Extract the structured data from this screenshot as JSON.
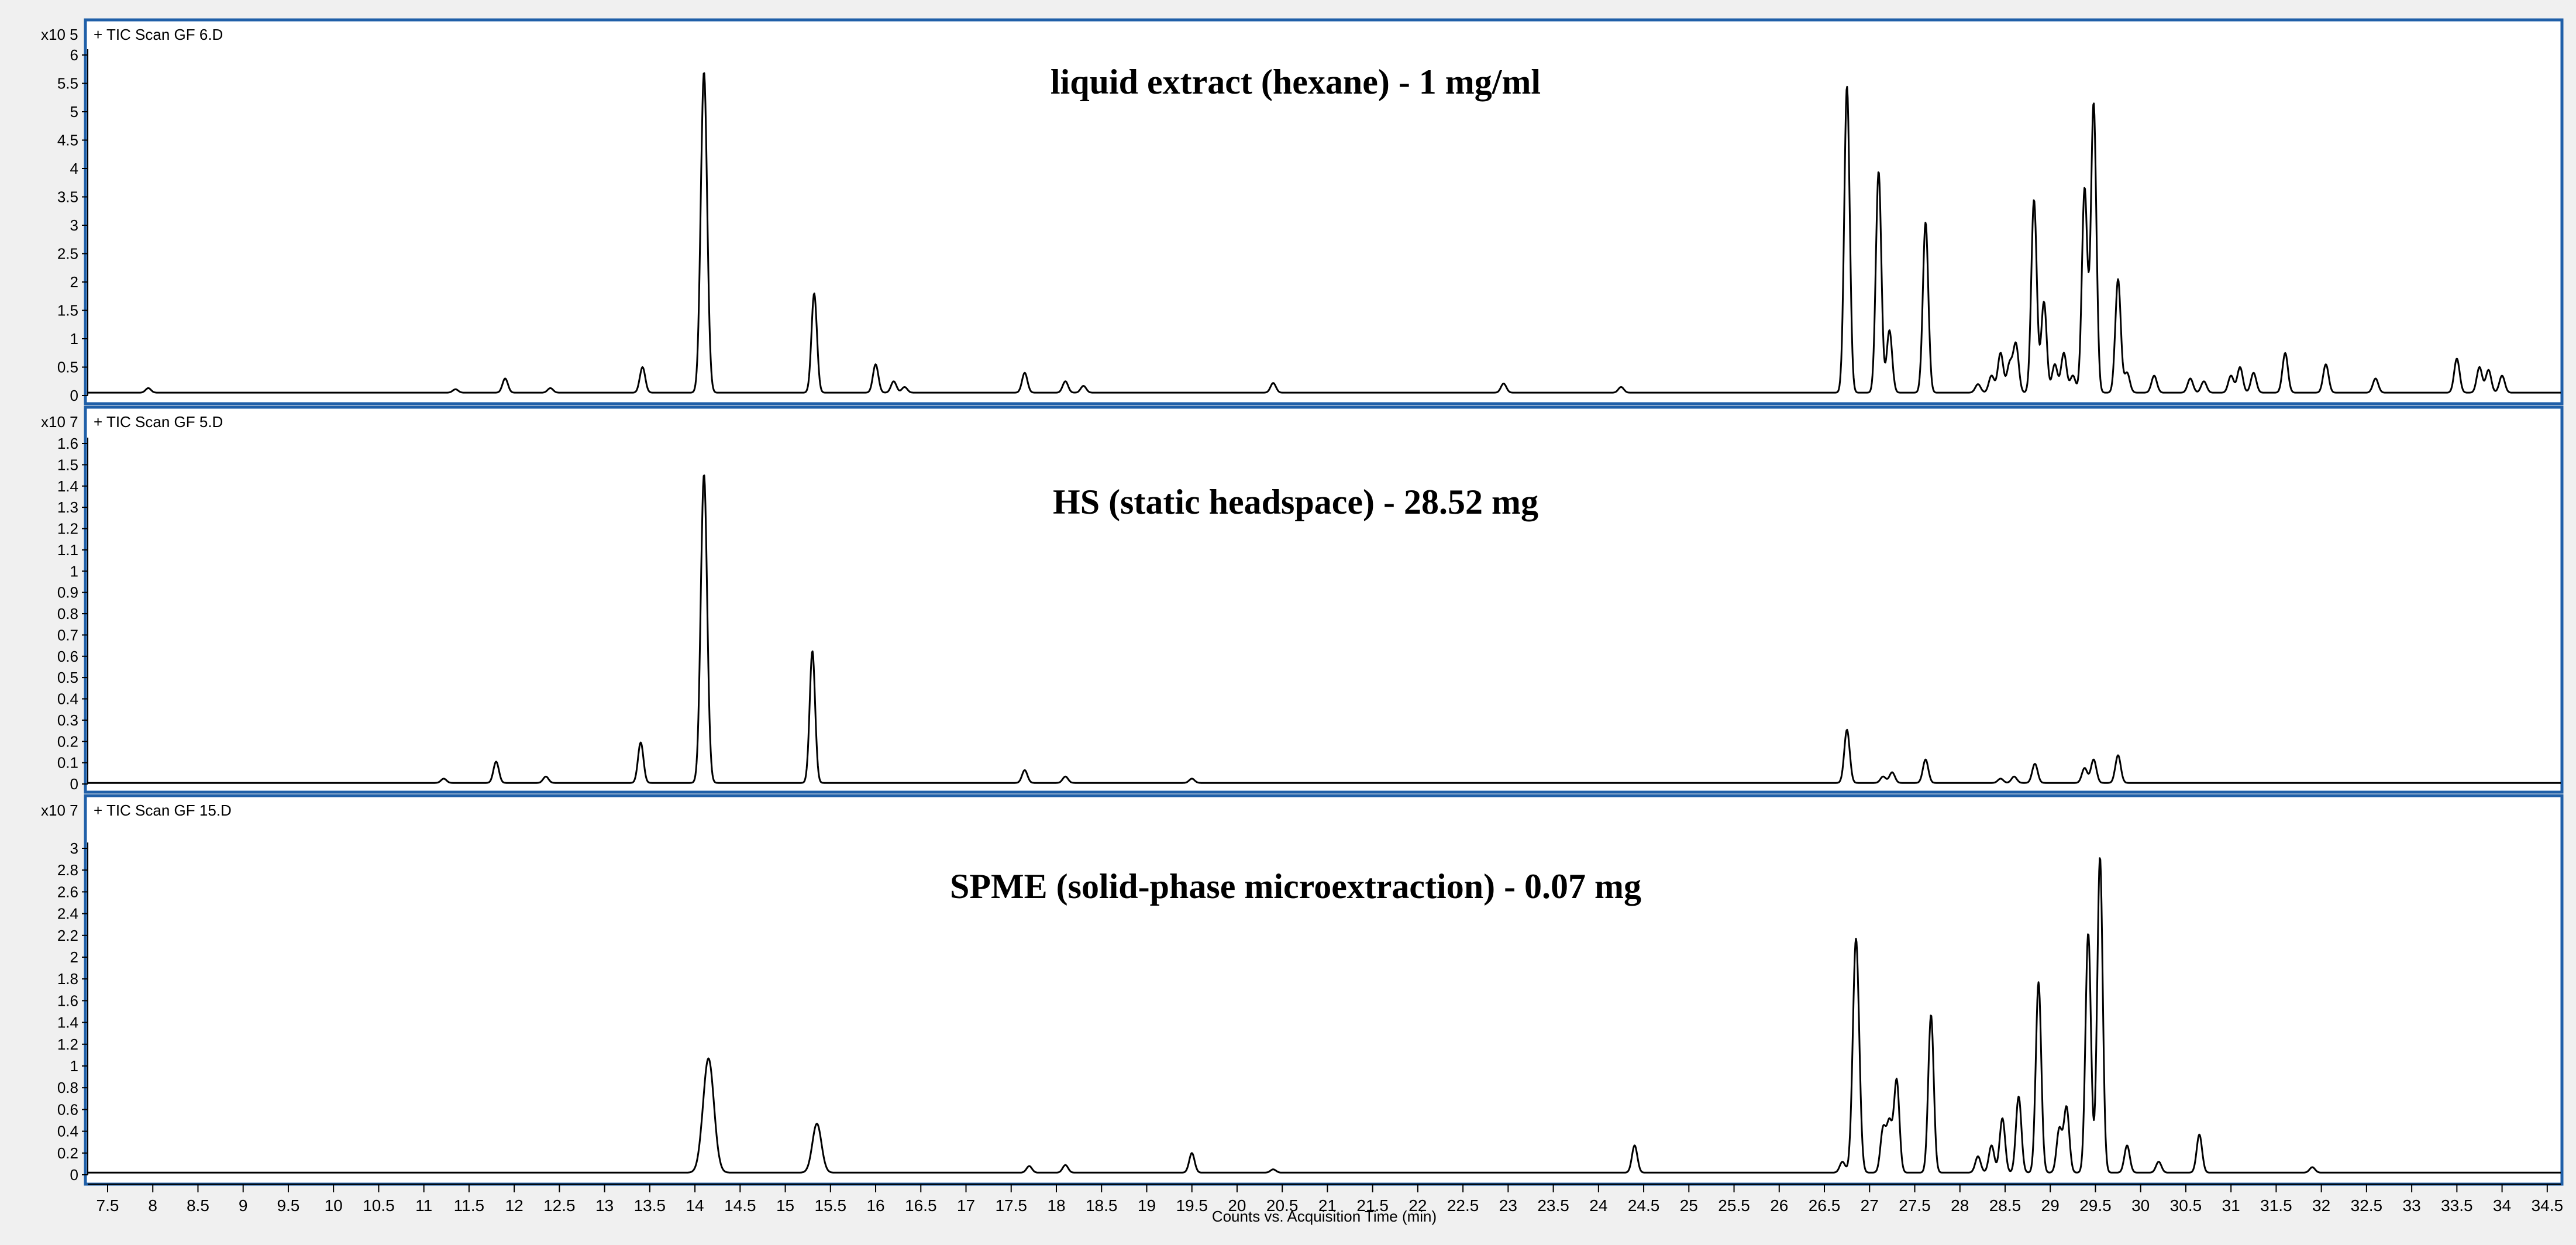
{
  "chart_data": [
    {
      "type": "line",
      "title": "liquid extract (hexane) - 1 mg/ml",
      "series": [
        {
          "name": "+ TIC Scan GF 6.D"
        }
      ],
      "y_multiplier": "x10 5",
      "ylim": [
        0,
        6
      ],
      "y_ticks": [
        0,
        0.5,
        1,
        1.5,
        2,
        2.5,
        3,
        3.5,
        4,
        4.5,
        5,
        5.5,
        6
      ],
      "baseline": 0.05,
      "peaks": [
        {
          "x": 7.95,
          "y": 0.08,
          "w": 0.03
        },
        {
          "x": 11.35,
          "y": 0.06,
          "w": 0.03
        },
        {
          "x": 11.9,
          "y": 0.25,
          "w": 0.03
        },
        {
          "x": 12.4,
          "y": 0.08,
          "w": 0.03
        },
        {
          "x": 13.42,
          "y": 0.45,
          "w": 0.03
        },
        {
          "x": 14.1,
          "y": 5.65,
          "w": 0.035
        },
        {
          "x": 15.32,
          "y": 1.75,
          "w": 0.03
        },
        {
          "x": 16.0,
          "y": 0.5,
          "w": 0.03
        },
        {
          "x": 16.2,
          "y": 0.2,
          "w": 0.03
        },
        {
          "x": 16.32,
          "y": 0.1,
          "w": 0.03
        },
        {
          "x": 17.65,
          "y": 0.35,
          "w": 0.03
        },
        {
          "x": 18.1,
          "y": 0.2,
          "w": 0.03
        },
        {
          "x": 18.3,
          "y": 0.12,
          "w": 0.03
        },
        {
          "x": 20.4,
          "y": 0.17,
          "w": 0.03
        },
        {
          "x": 22.95,
          "y": 0.16,
          "w": 0.03
        },
        {
          "x": 24.25,
          "y": 0.1,
          "w": 0.03
        },
        {
          "x": 26.75,
          "y": 5.4,
          "w": 0.03
        },
        {
          "x": 27.1,
          "y": 3.9,
          "w": 0.03
        },
        {
          "x": 27.22,
          "y": 1.1,
          "w": 0.03
        },
        {
          "x": 27.62,
          "y": 3.0,
          "w": 0.03
        },
        {
          "x": 28.2,
          "y": 0.15,
          "w": 0.03
        },
        {
          "x": 28.35,
          "y": 0.3,
          "w": 0.03
        },
        {
          "x": 28.45,
          "y": 0.7,
          "w": 0.03
        },
        {
          "x": 28.55,
          "y": 0.5,
          "w": 0.03
        },
        {
          "x": 28.62,
          "y": 0.85,
          "w": 0.03
        },
        {
          "x": 28.82,
          "y": 3.4,
          "w": 0.03
        },
        {
          "x": 28.93,
          "y": 1.6,
          "w": 0.03
        },
        {
          "x": 29.05,
          "y": 0.5,
          "w": 0.03
        },
        {
          "x": 29.15,
          "y": 0.7,
          "w": 0.03
        },
        {
          "x": 29.25,
          "y": 0.3,
          "w": 0.03
        },
        {
          "x": 29.38,
          "y": 3.6,
          "w": 0.03
        },
        {
          "x": 29.48,
          "y": 5.1,
          "w": 0.03
        },
        {
          "x": 29.75,
          "y": 2.0,
          "w": 0.03
        },
        {
          "x": 29.85,
          "y": 0.35,
          "w": 0.03
        },
        {
          "x": 30.15,
          "y": 0.3,
          "w": 0.03
        },
        {
          "x": 30.55,
          "y": 0.25,
          "w": 0.03
        },
        {
          "x": 30.7,
          "y": 0.2,
          "w": 0.03
        },
        {
          "x": 31.0,
          "y": 0.3,
          "w": 0.03
        },
        {
          "x": 31.1,
          "y": 0.45,
          "w": 0.03
        },
        {
          "x": 31.25,
          "y": 0.35,
          "w": 0.03
        },
        {
          "x": 31.6,
          "y": 0.7,
          "w": 0.03
        },
        {
          "x": 32.05,
          "y": 0.5,
          "w": 0.03
        },
        {
          "x": 32.6,
          "y": 0.25,
          "w": 0.03
        },
        {
          "x": 33.5,
          "y": 0.6,
          "w": 0.03
        },
        {
          "x": 33.75,
          "y": 0.45,
          "w": 0.03
        },
        {
          "x": 33.85,
          "y": 0.4,
          "w": 0.03
        },
        {
          "x": 34.0,
          "y": 0.3,
          "w": 0.03
        }
      ]
    },
    {
      "type": "line",
      "title": "HS (static headspace) - 28.52 mg",
      "series": [
        {
          "name": "+ TIC Scan GF 5.D"
        }
      ],
      "y_multiplier": "x10 7",
      "ylim": [
        0,
        1.6
      ],
      "y_ticks": [
        0,
        0.1,
        0.2,
        0.3,
        0.4,
        0.5,
        0.6,
        0.7,
        0.8,
        0.9,
        1,
        1.1,
        1.2,
        1.3,
        1.4,
        1.5,
        1.6
      ],
      "baseline": 0.005,
      "peaks": [
        {
          "x": 11.22,
          "y": 0.02,
          "w": 0.03
        },
        {
          "x": 11.8,
          "y": 0.1,
          "w": 0.03
        },
        {
          "x": 12.35,
          "y": 0.03,
          "w": 0.03
        },
        {
          "x": 13.4,
          "y": 0.19,
          "w": 0.03
        },
        {
          "x": 14.1,
          "y": 1.45,
          "w": 0.035
        },
        {
          "x": 15.3,
          "y": 0.62,
          "w": 0.03
        },
        {
          "x": 17.65,
          "y": 0.06,
          "w": 0.03
        },
        {
          "x": 18.1,
          "y": 0.03,
          "w": 0.03
        },
        {
          "x": 19.5,
          "y": 0.02,
          "w": 0.03
        },
        {
          "x": 26.75,
          "y": 0.25,
          "w": 0.03
        },
        {
          "x": 27.15,
          "y": 0.03,
          "w": 0.03
        },
        {
          "x": 27.25,
          "y": 0.05,
          "w": 0.03
        },
        {
          "x": 27.62,
          "y": 0.11,
          "w": 0.03
        },
        {
          "x": 28.45,
          "y": 0.02,
          "w": 0.03
        },
        {
          "x": 28.6,
          "y": 0.03,
          "w": 0.03
        },
        {
          "x": 28.83,
          "y": 0.09,
          "w": 0.03
        },
        {
          "x": 29.38,
          "y": 0.07,
          "w": 0.03
        },
        {
          "x": 29.48,
          "y": 0.11,
          "w": 0.03
        },
        {
          "x": 29.75,
          "y": 0.13,
          "w": 0.03
        }
      ]
    },
    {
      "type": "line",
      "title": "SPME (solid-phase microextraction) - 0.07 mg",
      "series": [
        {
          "name": "+ TIC Scan GF 15.D"
        }
      ],
      "y_multiplier": "x10 7",
      "ylim": [
        0,
        3
      ],
      "y_ticks": [
        0,
        0.2,
        0.4,
        0.6,
        0.8,
        1,
        1.2,
        1.4,
        1.6,
        1.8,
        2,
        2.2,
        2.4,
        2.6,
        2.8,
        3
      ],
      "baseline": 0.02,
      "peaks": [
        {
          "x": 14.15,
          "y": 1.05,
          "w": 0.06
        },
        {
          "x": 15.35,
          "y": 0.45,
          "w": 0.05
        },
        {
          "x": 17.7,
          "y": 0.06,
          "w": 0.03
        },
        {
          "x": 18.1,
          "y": 0.07,
          "w": 0.03
        },
        {
          "x": 19.5,
          "y": 0.18,
          "w": 0.03
        },
        {
          "x": 20.4,
          "y": 0.03,
          "w": 0.03
        },
        {
          "x": 24.4,
          "y": 0.25,
          "w": 0.03
        },
        {
          "x": 26.7,
          "y": 0.1,
          "w": 0.03
        },
        {
          "x": 26.85,
          "y": 2.15,
          "w": 0.035
        },
        {
          "x": 27.15,
          "y": 0.4,
          "w": 0.03
        },
        {
          "x": 27.22,
          "y": 0.45,
          "w": 0.03
        },
        {
          "x": 27.3,
          "y": 0.85,
          "w": 0.03
        },
        {
          "x": 27.68,
          "y": 1.45,
          "w": 0.03
        },
        {
          "x": 28.2,
          "y": 0.15,
          "w": 0.03
        },
        {
          "x": 28.35,
          "y": 0.25,
          "w": 0.03
        },
        {
          "x": 28.47,
          "y": 0.5,
          "w": 0.03
        },
        {
          "x": 28.65,
          "y": 0.7,
          "w": 0.03
        },
        {
          "x": 28.87,
          "y": 1.75,
          "w": 0.03
        },
        {
          "x": 29.1,
          "y": 0.4,
          "w": 0.03
        },
        {
          "x": 29.18,
          "y": 0.6,
          "w": 0.03
        },
        {
          "x": 29.42,
          "y": 2.2,
          "w": 0.03
        },
        {
          "x": 29.55,
          "y": 2.9,
          "w": 0.03
        },
        {
          "x": 29.85,
          "y": 0.25,
          "w": 0.03
        },
        {
          "x": 30.2,
          "y": 0.1,
          "w": 0.03
        },
        {
          "x": 30.65,
          "y": 0.35,
          "w": 0.03
        },
        {
          "x": 31.9,
          "y": 0.05,
          "w": 0.03
        }
      ]
    }
  ],
  "x_axis": {
    "label": "Counts vs. Acquisition Time (min)",
    "xlim": [
      7.28,
      34.65
    ],
    "ticks": [
      7.5,
      8,
      8.5,
      9,
      9.5,
      10,
      10.5,
      11,
      11.5,
      12,
      12.5,
      13,
      13.5,
      14,
      14.5,
      15,
      15.5,
      16,
      16.5,
      17,
      17.5,
      18,
      18.5,
      19,
      19.5,
      20,
      20.5,
      21,
      21.5,
      22,
      22.5,
      23,
      23.5,
      24,
      24.5,
      25,
      25.5,
      26,
      26.5,
      27,
      27.5,
      28,
      28.5,
      29,
      29.5,
      30,
      30.5,
      31,
      31.5,
      32,
      32.5,
      33,
      33.5,
      34,
      34.5
    ]
  }
}
